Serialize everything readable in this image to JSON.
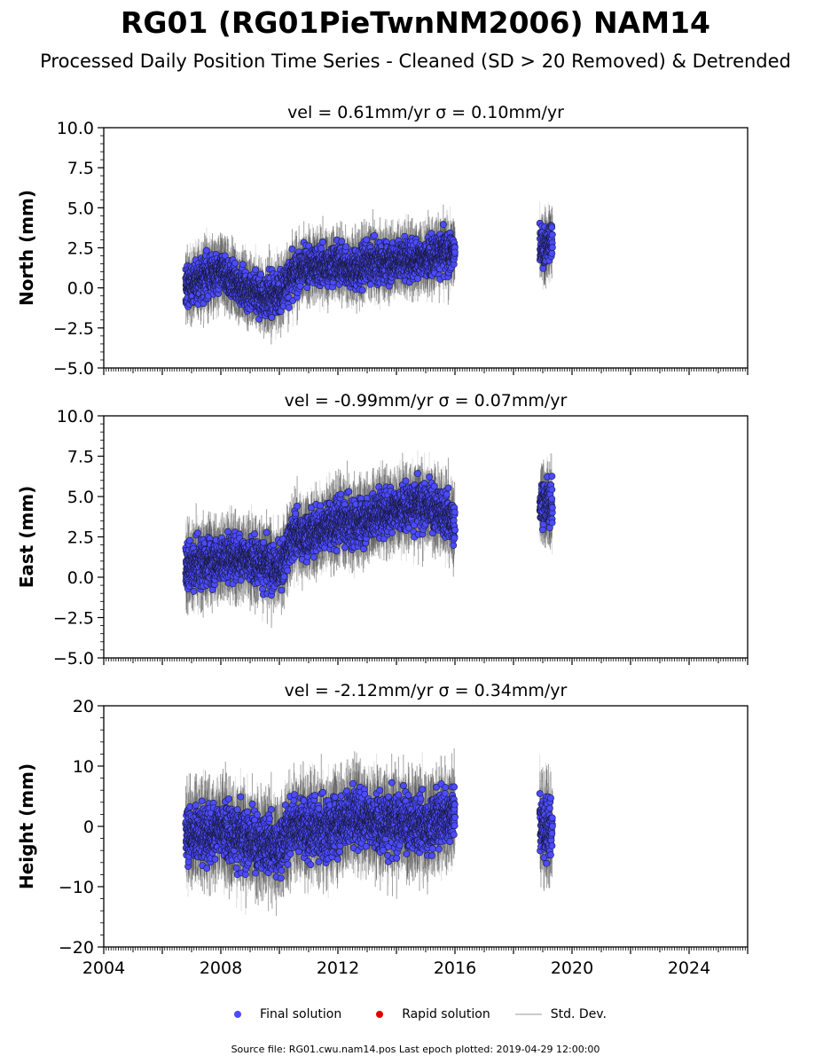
{
  "title": "RG01 (RG01PieTwnNM2006) NAM14",
  "subtitle": "Processed Daily Position Time Series - Cleaned (SD > 20 Removed) & Detrended",
  "legend": {
    "final": "Final solution",
    "rapid": "Rapid solution",
    "std": "Std. Dev."
  },
  "footer": "Source file: RG01.cwu.nam14.pos  Last epoch plotted: 2019-04-29 12:00:00",
  "colors": {
    "final": "#4b4bff",
    "rapid": "#e00000",
    "std": "#555555",
    "std_light": "#c8c8c8"
  },
  "chart_data": [
    {
      "type": "scatter",
      "panel": "north",
      "title": "vel = 0.61mm/yr   σ = 0.10mm/yr",
      "ylabel": "North (mm)",
      "xlim": [
        2004,
        2026
      ],
      "ylim": [
        -5,
        10
      ],
      "yticks": [
        "−5.0",
        "−2.5",
        "0.0",
        "2.5",
        "5.0",
        "7.5",
        "10.0"
      ],
      "ytick_values": [
        -5,
        -2.5,
        0,
        2.5,
        5,
        7.5,
        10
      ],
      "segments": [
        {
          "x": [
            2006.8,
            2007.5,
            2008.0,
            2008.5,
            2009.0,
            2009.5,
            2010.0,
            2010.5,
            2011.0,
            2011.5,
            2012.0,
            2012.5,
            2013.0,
            2013.5,
            2014.0,
            2014.5,
            2015.0,
            2015.5,
            2016.0
          ],
          "y": [
            0.0,
            0.8,
            0.9,
            0.3,
            -0.2,
            -0.6,
            -0.3,
            0.8,
            1.4,
            1.3,
            1.6,
            1.1,
            1.5,
            1.6,
            1.7,
            1.8,
            1.9,
            2.2,
            2.2
          ]
        },
        {
          "x": [
            2018.9,
            2019.33
          ],
          "y": [
            2.4,
            2.9
          ]
        }
      ],
      "std": 1.3
    },
    {
      "type": "scatter",
      "panel": "east",
      "title": "vel = -0.99mm/yr   σ = 0.07mm/yr",
      "ylabel": "East (mm)",
      "xlim": [
        2004,
        2026
      ],
      "ylim": [
        -5,
        10
      ],
      "yticks": [
        "−5.0",
        "−2.5",
        "0.0",
        "2.5",
        "5.0",
        "7.5",
        "10.0"
      ],
      "ytick_values": [
        -5,
        -2.5,
        0,
        2.5,
        5,
        7.5,
        10
      ],
      "segments": [
        {
          "x": [
            2006.8,
            2007.5,
            2008.0,
            2008.5,
            2009.0,
            2009.5,
            2010.0,
            2010.5,
            2011.0,
            2011.5,
            2012.0,
            2012.5,
            2013.0,
            2013.5,
            2014.0,
            2014.5,
            2015.0,
            2015.5,
            2016.0
          ],
          "y": [
            0.4,
            1.0,
            1.0,
            1.3,
            1.2,
            0.8,
            0.4,
            2.6,
            2.6,
            3.1,
            3.4,
            3.3,
            3.6,
            4.0,
            4.3,
            4.4,
            4.4,
            4.1,
            3.4
          ]
        },
        {
          "x": [
            2018.9,
            2019.33
          ],
          "y": [
            4.6,
            4.6
          ]
        }
      ],
      "std": 1.5
    },
    {
      "type": "scatter",
      "panel": "height",
      "title": "vel = -2.12mm/yr   σ = 0.34mm/yr",
      "ylabel": "Height (mm)",
      "xlim": [
        2004,
        2026
      ],
      "ylim": [
        -20,
        20
      ],
      "yticks": [
        "−20",
        "−10",
        "0",
        "10",
        "20"
      ],
      "ytick_values": [
        -20,
        -10,
        0,
        10,
        20
      ],
      "xticks": [
        "2004",
        "2008",
        "2012",
        "2016",
        "2020",
        "2024"
      ],
      "xtick_values": [
        2004,
        2008,
        2012,
        2016,
        2020,
        2024
      ],
      "segments": [
        {
          "x": [
            2006.8,
            2007.5,
            2008.0,
            2008.5,
            2009.0,
            2009.5,
            2010.0,
            2010.5,
            2011.0,
            2011.5,
            2012.0,
            2012.5,
            2013.0,
            2013.5,
            2014.0,
            2014.5,
            2015.0,
            2015.5,
            2016.0
          ],
          "y": [
            -1.0,
            -1.5,
            0.0,
            -1.5,
            -2.5,
            -3.0,
            -3.5,
            0.5,
            -0.5,
            -1.0,
            0.5,
            1.5,
            1.5,
            0.5,
            0.5,
            0.5,
            0.0,
            1.5,
            2.0
          ]
        },
        {
          "x": [
            2018.9,
            2019.33
          ],
          "y": [
            1.0,
            -1.5
          ]
        }
      ],
      "std": 5.0
    }
  ]
}
